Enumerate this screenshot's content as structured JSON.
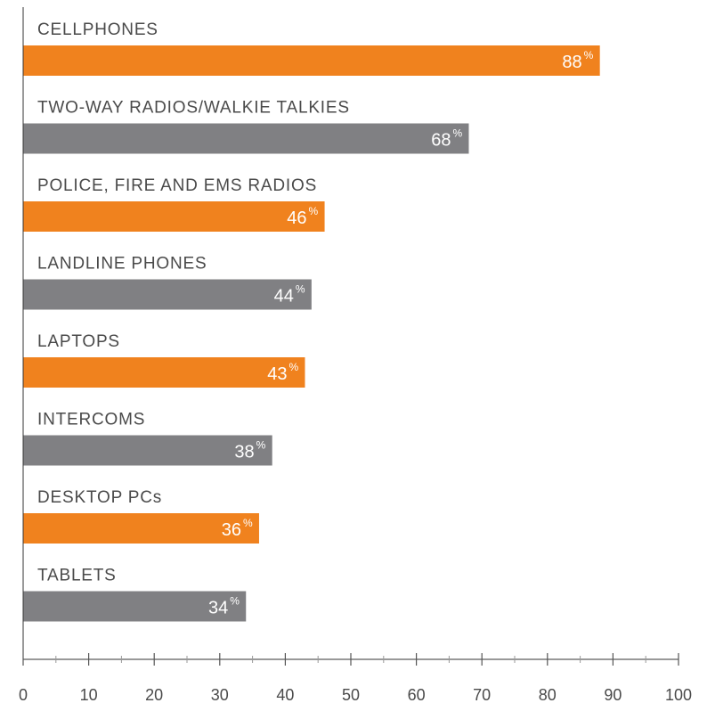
{
  "chart_data": {
    "type": "bar",
    "orientation": "horizontal",
    "categories": [
      "CELLPHONES",
      "TWO-WAY RADIOS/WALKIE TALKIES",
      "POLICE, FIRE AND EMS RADIOS",
      "LANDLINE PHONES",
      "LAPTOPS",
      "INTERCOMS",
      "DESKTOP PCs",
      "TABLETS"
    ],
    "values": [
      88,
      68,
      46,
      44,
      43,
      38,
      36,
      34
    ],
    "value_suffix": "%",
    "bar_colors": [
      "#f0821e",
      "#808083",
      "#f0821e",
      "#808083",
      "#f0821e",
      "#808083",
      "#f0821e",
      "#808083"
    ],
    "xlim": [
      0,
      100
    ],
    "xticks": [
      0,
      10,
      20,
      30,
      40,
      50,
      60,
      70,
      80,
      90,
      100
    ],
    "xticks_minor": [
      5,
      15,
      25,
      35,
      45,
      55,
      65,
      75,
      85,
      95
    ],
    "grid": false,
    "legend": "none"
  }
}
